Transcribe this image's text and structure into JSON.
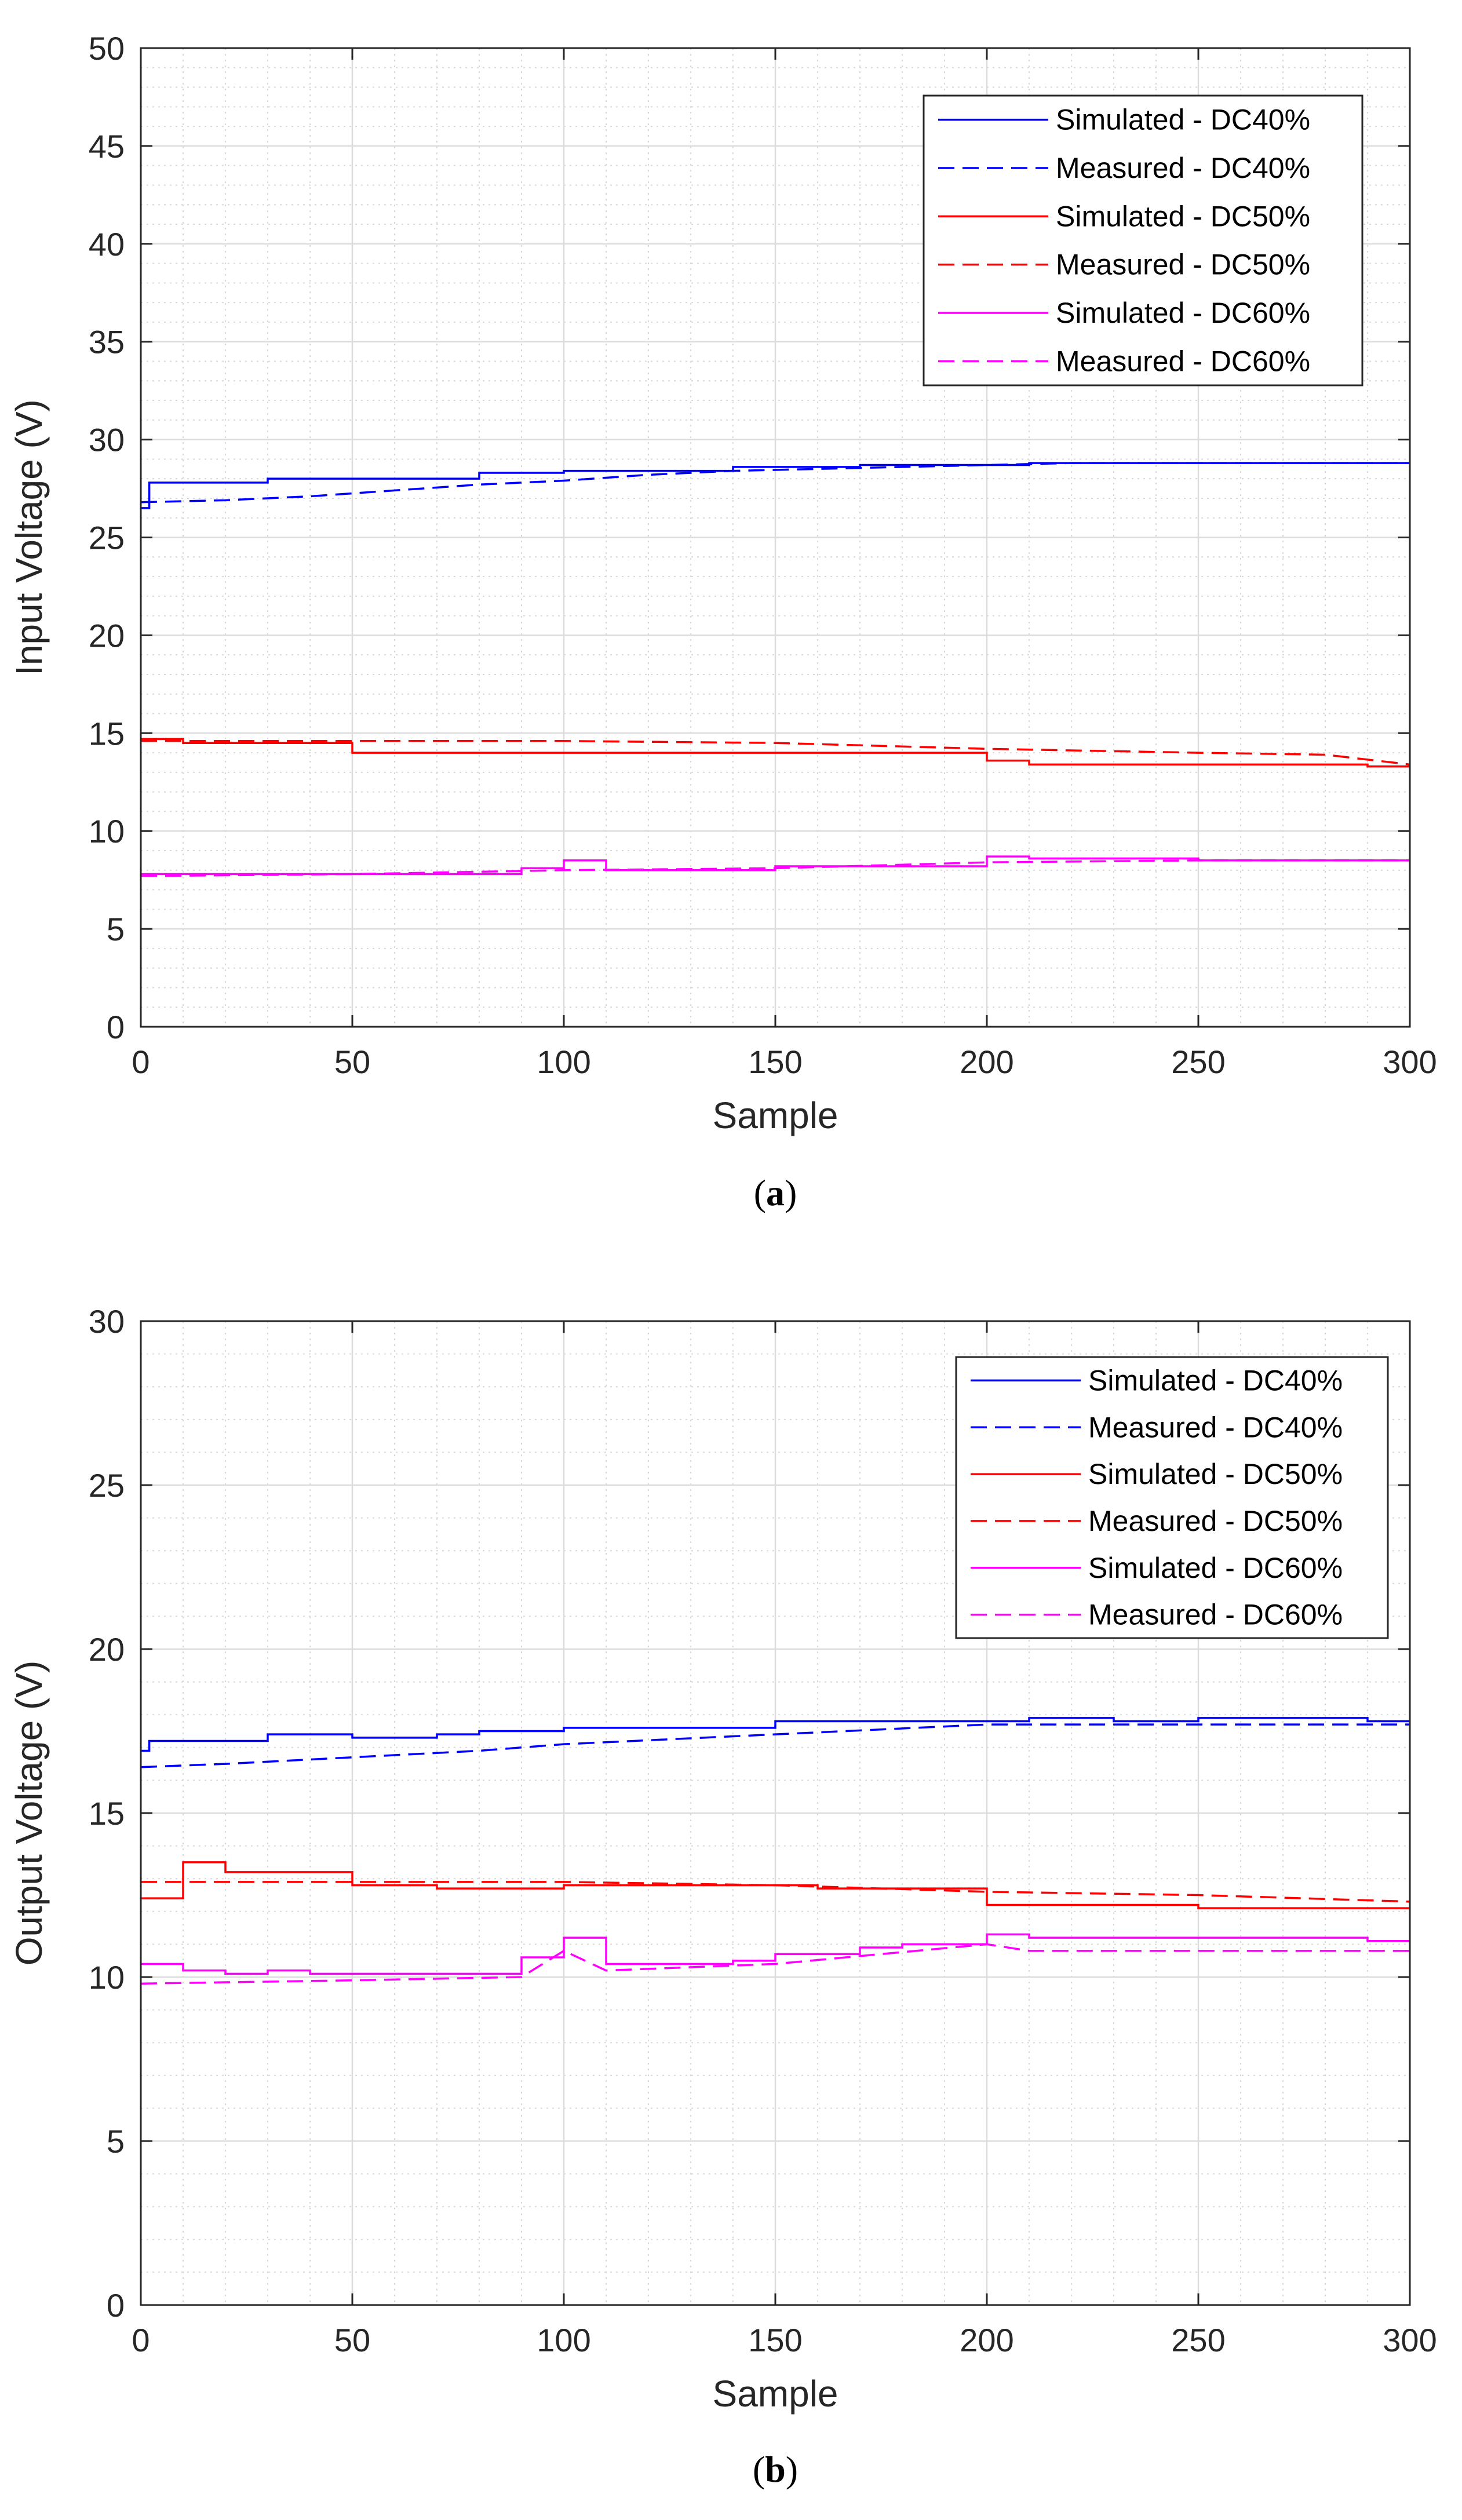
{
  "chart_data": [
    {
      "id": "a",
      "type": "line",
      "caption": "(a)",
      "caption_parts": [
        "(",
        "a",
        ")"
      ],
      "xlabel": "Sample",
      "ylabel": "Input Voltage (V)",
      "xlim": [
        0,
        300
      ],
      "ylim": [
        0,
        50
      ],
      "xticks": [
        0,
        50,
        100,
        150,
        200,
        250,
        300
      ],
      "yticks": [
        0,
        5,
        10,
        15,
        20,
        25,
        30,
        35,
        40,
        45,
        50
      ],
      "grid": true,
      "minor_grid": true,
      "legend_position": "top-right",
      "series": [
        {
          "name": "Simulated - DC40%",
          "color": "#0000ff",
          "dash": "solid",
          "step": true,
          "x": [
            0,
            2,
            30,
            80,
            100,
            140,
            150,
            170,
            200,
            210,
            250,
            300
          ],
          "y": [
            26.5,
            27.8,
            28.0,
            28.3,
            28.4,
            28.6,
            28.6,
            28.7,
            28.7,
            28.8,
            28.8,
            28.8
          ]
        },
        {
          "name": "Measured - DC40%",
          "color": "#0000ff",
          "dash": "dashed",
          "step": false,
          "x": [
            0,
            20,
            40,
            60,
            80,
            100,
            120,
            140,
            160,
            180,
            200,
            220,
            250,
            300
          ],
          "y": [
            26.8,
            26.9,
            27.1,
            27.4,
            27.7,
            27.9,
            28.2,
            28.4,
            28.5,
            28.6,
            28.7,
            28.8,
            28.8,
            28.8
          ]
        },
        {
          "name": "Simulated - DC50%",
          "color": "#ff0000",
          "dash": "solid",
          "step": true,
          "x": [
            0,
            10,
            50,
            100,
            150,
            200,
            210,
            250,
            290,
            300
          ],
          "y": [
            14.7,
            14.5,
            14.0,
            14.0,
            14.0,
            13.6,
            13.4,
            13.4,
            13.3,
            13.3
          ]
        },
        {
          "name": "Measured - DC50%",
          "color": "#ff0000",
          "dash": "dashed",
          "step": false,
          "x": [
            0,
            50,
            100,
            150,
            200,
            250,
            280,
            300
          ],
          "y": [
            14.6,
            14.6,
            14.6,
            14.5,
            14.2,
            14.0,
            13.9,
            13.4
          ]
        },
        {
          "name": "Simulated - DC60%",
          "color": "#ff00ff",
          "dash": "solid",
          "step": true,
          "x": [
            0,
            50,
            90,
            100,
            110,
            150,
            200,
            210,
            250,
            300
          ],
          "y": [
            7.8,
            7.8,
            8.1,
            8.5,
            8.0,
            8.2,
            8.7,
            8.6,
            8.5,
            8.5
          ]
        },
        {
          "name": "Measured - DC60%",
          "color": "#ff00ff",
          "dash": "dashed",
          "step": false,
          "x": [
            0,
            50,
            100,
            150,
            200,
            250,
            300
          ],
          "y": [
            7.7,
            7.8,
            8.0,
            8.1,
            8.4,
            8.5,
            8.5
          ]
        }
      ]
    },
    {
      "id": "b",
      "type": "line",
      "caption": "(b)",
      "caption_parts": [
        "(",
        "b",
        ")"
      ],
      "xlabel": "Sample",
      "ylabel": "Output Voltage (V)",
      "xlim": [
        0,
        300
      ],
      "ylim": [
        0,
        30
      ],
      "xticks": [
        0,
        50,
        100,
        150,
        200,
        250,
        300
      ],
      "yticks": [
        0,
        5,
        10,
        15,
        20,
        25,
        30
      ],
      "grid": true,
      "minor_grid": true,
      "legend_position": "top-right",
      "series": [
        {
          "name": "Simulated - DC40%",
          "color": "#0000ff",
          "dash": "solid",
          "step": true,
          "x": [
            0,
            2,
            30,
            50,
            70,
            80,
            100,
            120,
            150,
            160,
            200,
            210,
            230,
            250,
            290,
            300
          ],
          "y": [
            16.9,
            17.2,
            17.4,
            17.3,
            17.4,
            17.5,
            17.6,
            17.6,
            17.8,
            17.8,
            17.8,
            17.9,
            17.8,
            17.9,
            17.8,
            17.8
          ]
        },
        {
          "name": "Measured - DC40%",
          "color": "#0000ff",
          "dash": "dashed",
          "step": false,
          "x": [
            0,
            20,
            50,
            80,
            100,
            150,
            200,
            250,
            300
          ],
          "y": [
            16.4,
            16.5,
            16.7,
            16.9,
            17.1,
            17.4,
            17.7,
            17.7,
            17.7
          ]
        },
        {
          "name": "Simulated - DC50%",
          "color": "#ff0000",
          "dash": "solid",
          "step": true,
          "x": [
            0,
            10,
            20,
            50,
            70,
            100,
            150,
            160,
            200,
            250,
            290,
            300
          ],
          "y": [
            12.4,
            13.5,
            13.2,
            12.8,
            12.7,
            12.8,
            12.8,
            12.7,
            12.2,
            12.1,
            12.1,
            12.1
          ]
        },
        {
          "name": "Measured - DC50%",
          "color": "#ff0000",
          "dash": "dashed",
          "step": false,
          "x": [
            0,
            50,
            100,
            150,
            200,
            250,
            300
          ],
          "y": [
            12.9,
            12.9,
            12.9,
            12.8,
            12.6,
            12.5,
            12.3
          ]
        },
        {
          "name": "Simulated - DC60%",
          "color": "#ff00ff",
          "dash": "solid",
          "step": true,
          "x": [
            0,
            10,
            20,
            30,
            40,
            60,
            90,
            100,
            110,
            120,
            140,
            150,
            170,
            180,
            200,
            210,
            250,
            290,
            300
          ],
          "y": [
            10.4,
            10.2,
            10.1,
            10.2,
            10.1,
            10.1,
            10.6,
            11.2,
            10.4,
            10.4,
            10.5,
            10.7,
            10.9,
            11.0,
            11.3,
            11.2,
            11.2,
            11.1,
            11.1
          ]
        },
        {
          "name": "Measured - DC60%",
          "color": "#ff00ff",
          "dash": "dashed",
          "step": false,
          "x": [
            0,
            50,
            90,
            100,
            110,
            150,
            200,
            210,
            250,
            300
          ],
          "y": [
            9.8,
            9.9,
            10.0,
            10.8,
            10.2,
            10.4,
            11.0,
            10.8,
            10.8,
            10.8
          ]
        }
      ]
    }
  ]
}
